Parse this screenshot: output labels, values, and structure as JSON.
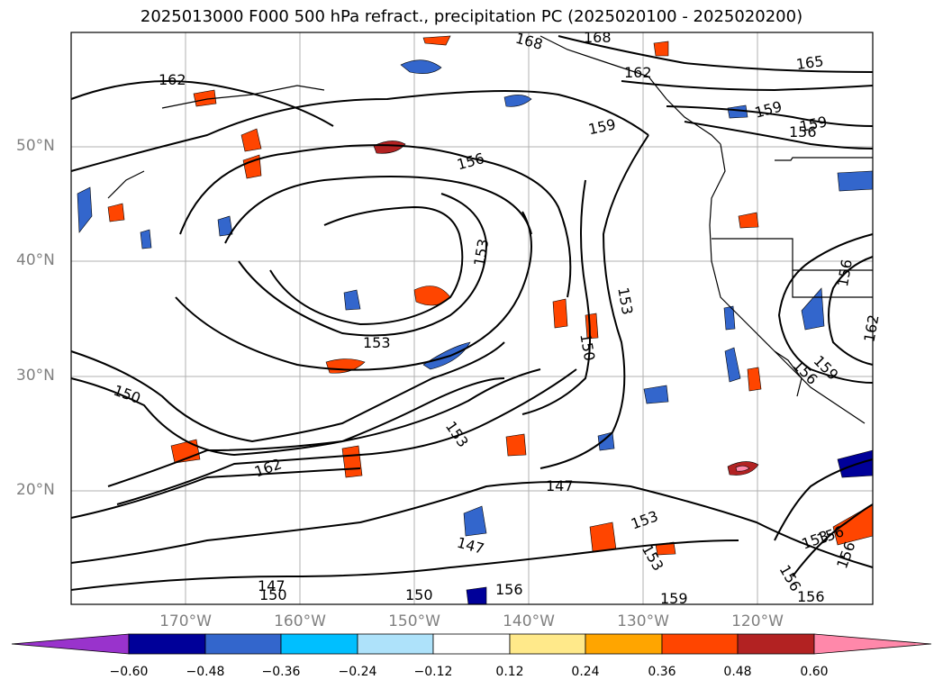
{
  "title": "2025013000 F000 500 hPa refract., precipitation PC (2025020100 - 2025020200)",
  "lat_labels": [
    "50°N",
    "40°N",
    "30°N",
    "20°N"
  ],
  "lon_labels": [
    "170°W",
    "160°W",
    "150°W",
    "140°W",
    "130°W",
    "120°W"
  ],
  "contour_labels": [
    "168",
    "168",
    "162",
    "165",
    "162",
    "159",
    "159",
    "159",
    "156",
    "156",
    "153",
    "153",
    "153",
    "150",
    "150",
    "162",
    "153",
    "147",
    "153",
    "147",
    "147",
    "150",
    "150",
    "156",
    "153",
    "159",
    "156",
    "156",
    "156",
    "153",
    "156",
    "162",
    "156",
    "156",
    "159"
  ],
  "colorbar": {
    "ticks": [
      "−0.60",
      "−0.48",
      "−0.36",
      "−0.24",
      "−0.12",
      "0.12",
      "0.24",
      "0.36",
      "0.48",
      "0.60"
    ],
    "colors": [
      "#9933cc",
      "#000099",
      "#3366cc",
      "#00bfff",
      "#aee2fa",
      "#ffffff",
      "#ffe98a",
      "#ffa500",
      "#ff4500",
      "#b22222",
      "#ff88aa"
    ]
  }
}
